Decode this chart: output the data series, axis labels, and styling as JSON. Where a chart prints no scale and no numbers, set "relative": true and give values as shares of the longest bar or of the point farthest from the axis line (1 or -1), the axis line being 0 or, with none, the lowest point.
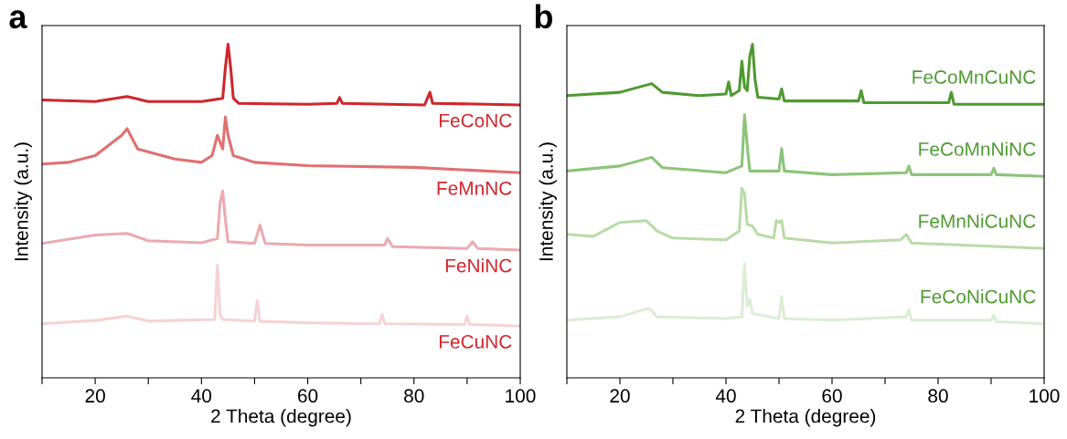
{
  "chart_data": [
    {
      "type": "line",
      "title": "a",
      "xlabel": "2 Theta (degree)",
      "ylabel": "Intensity (a.u.)",
      "relative": true,
      "tick_labels": "x",
      "xlim": [
        10,
        100
      ],
      "xticks": [
        {
          "value": 10,
          "label": null
        },
        20,
        {
          "value": 30,
          "label": null
        },
        40,
        {
          "value": 50,
          "label": null
        },
        60,
        {
          "value": 70,
          "label": null
        },
        80,
        {
          "value": 90,
          "label": null
        },
        100
      ],
      "series": [
        {
          "name": "FeCoNC",
          "color": "#d0262c",
          "x": [
            10,
            20,
            26,
            30,
            40,
            44,
            44.5,
            45,
            45.5,
            46,
            47,
            60,
            65.5,
            66,
            66.5,
            82,
            83,
            83.5,
            100
          ],
          "values": [
            0.833,
            0.828,
            0.843,
            0.828,
            0.828,
            0.838,
            0.929,
            1.0,
            0.929,
            0.838,
            0.823,
            0.82,
            0.823,
            0.84,
            0.823,
            0.818,
            0.856,
            0.823,
            0.818
          ]
        },
        {
          "name": "FeMnNC",
          "color": "#e07070",
          "x": [
            10,
            15,
            20,
            25,
            26,
            28,
            35,
            40,
            42,
            43,
            44,
            44.5,
            45,
            46,
            50,
            60,
            80,
            100
          ],
          "values": [
            0.641,
            0.646,
            0.666,
            0.727,
            0.747,
            0.686,
            0.656,
            0.646,
            0.666,
            0.727,
            0.686,
            0.782,
            0.727,
            0.666,
            0.646,
            0.636,
            0.631,
            0.615
          ]
        },
        {
          "name": "FeNiNC",
          "color": "#ebaab0",
          "x": [
            10,
            20,
            26,
            30,
            40,
            43,
            43.5,
            44,
            44.5,
            45,
            50,
            51,
            52,
            60,
            74.5,
            75,
            76,
            90,
            91,
            92,
            100
          ],
          "values": [
            0.403,
            0.428,
            0.433,
            0.411,
            0.405,
            0.418,
            0.524,
            0.56,
            0.474,
            0.408,
            0.403,
            0.458,
            0.403,
            0.398,
            0.398,
            0.418,
            0.393,
            0.388,
            0.408,
            0.388,
            0.383
          ]
        },
        {
          "name": "FeCuNC",
          "color": "#f5d3d5",
          "x": [
            10,
            20,
            26,
            30,
            42.5,
            43,
            43.5,
            44,
            50,
            50.5,
            51,
            60,
            73.5,
            74,
            74.5,
            89.5,
            90,
            90.5,
            100
          ],
          "values": [
            0.162,
            0.172,
            0.185,
            0.17,
            0.175,
            0.337,
            0.19,
            0.175,
            0.17,
            0.231,
            0.17,
            0.165,
            0.162,
            0.19,
            0.162,
            0.16,
            0.185,
            0.16,
            0.155
          ]
        }
      ]
    },
    {
      "type": "line",
      "title": "b",
      "xlabel": "2 Theta (degree)",
      "ylabel": "Intensity (a.u.)",
      "relative": true,
      "tick_labels": "x",
      "xlim": [
        10,
        100
      ],
      "xticks": [
        {
          "value": 10,
          "label": null
        },
        20,
        {
          "value": 30,
          "label": null
        },
        40,
        {
          "value": 50,
          "label": null
        },
        60,
        {
          "value": 70,
          "label": null
        },
        80,
        {
          "value": 90,
          "label": null
        },
        100
      ],
      "series": [
        {
          "name": "FeCoMnCuNC",
          "color": "#4e9a30",
          "x": [
            10,
            20,
            26,
            28,
            35,
            40,
            40.5,
            41,
            42.5,
            43,
            43.5,
            44,
            44.5,
            45,
            45.5,
            46,
            50,
            50.5,
            51,
            65,
            65.5,
            66,
            82,
            82.5,
            83,
            100
          ],
          "values": [
            0.846,
            0.856,
            0.882,
            0.856,
            0.846,
            0.851,
            0.887,
            0.846,
            0.861,
            0.949,
            0.872,
            0.861,
            0.964,
            1.0,
            0.892,
            0.841,
            0.836,
            0.866,
            0.83,
            0.83,
            0.861,
            0.825,
            0.825,
            0.856,
            0.82,
            0.82
          ]
        },
        {
          "name": "FeCoMnNiNC",
          "color": "#8cc478",
          "x": [
            10,
            20,
            26,
            28,
            40,
            43,
            43.5,
            44,
            44.5,
            50,
            50.5,
            51,
            60,
            74,
            74.5,
            75,
            90,
            90.5,
            91,
            100
          ],
          "values": [
            0.62,
            0.635,
            0.661,
            0.63,
            0.615,
            0.635,
            0.789,
            0.697,
            0.62,
            0.62,
            0.687,
            0.62,
            0.609,
            0.615,
            0.635,
            0.609,
            0.609,
            0.628,
            0.609,
            0.604
          ]
        },
        {
          "name": "FeMnNiCuNC",
          "color": "#b9dba8",
          "x": [
            10,
            15,
            20,
            25,
            27,
            30,
            40,
            42.5,
            43,
            43.5,
            44,
            45,
            46,
            49,
            49.5,
            50,
            50.5,
            51,
            60,
            73,
            74,
            75,
            100
          ],
          "values": [
            0.43,
            0.424,
            0.466,
            0.471,
            0.44,
            0.419,
            0.414,
            0.44,
            0.568,
            0.553,
            0.46,
            0.455,
            0.43,
            0.419,
            0.471,
            0.466,
            0.471,
            0.419,
            0.404,
            0.414,
            0.43,
            0.404,
            0.388
          ]
        },
        {
          "name": "FeCoNiCuNC",
          "color": "#dcedd6",
          "x": [
            10,
            20,
            25.5,
            27,
            40,
            43,
            43.5,
            44,
            44.5,
            45,
            50,
            50.5,
            51,
            60,
            74,
            74.5,
            75,
            90,
            90.5,
            91,
            100
          ],
          "values": [
            0.173,
            0.183,
            0.209,
            0.183,
            0.178,
            0.183,
            0.342,
            0.214,
            0.234,
            0.193,
            0.178,
            0.245,
            0.178,
            0.173,
            0.183,
            0.203,
            0.173,
            0.173,
            0.188,
            0.168,
            0.162
          ]
        }
      ]
    }
  ]
}
